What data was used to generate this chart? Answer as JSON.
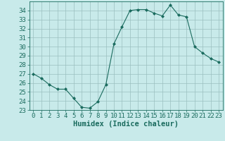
{
  "x": [
    0,
    1,
    2,
    3,
    4,
    5,
    6,
    7,
    8,
    9,
    10,
    11,
    12,
    13,
    14,
    15,
    16,
    17,
    18,
    19,
    20,
    21,
    22,
    23
  ],
  "y": [
    27.0,
    26.5,
    25.8,
    25.3,
    25.3,
    24.3,
    23.3,
    23.2,
    23.9,
    25.8,
    30.3,
    32.2,
    34.0,
    34.1,
    34.1,
    33.7,
    33.4,
    34.6,
    33.5,
    33.3,
    30.0,
    29.3,
    28.7,
    28.3
  ],
  "line_color": "#1a6b5e",
  "marker": "D",
  "marker_size": 2,
  "bg_color": "#c8eaea",
  "grid_color": "#9bbfbf",
  "tick_color": "#1a6b5e",
  "xlabel": "Humidex (Indice chaleur)",
  "xlim": [
    -0.5,
    23.5
  ],
  "ylim": [
    23,
    35
  ],
  "yticks": [
    23,
    24,
    25,
    26,
    27,
    28,
    29,
    30,
    31,
    32,
    33,
    34
  ],
  "xticks": [
    0,
    1,
    2,
    3,
    4,
    5,
    6,
    7,
    8,
    9,
    10,
    11,
    12,
    13,
    14,
    15,
    16,
    17,
    18,
    19,
    20,
    21,
    22,
    23
  ],
  "font_size": 6.5,
  "xlabel_font_size": 7.5
}
